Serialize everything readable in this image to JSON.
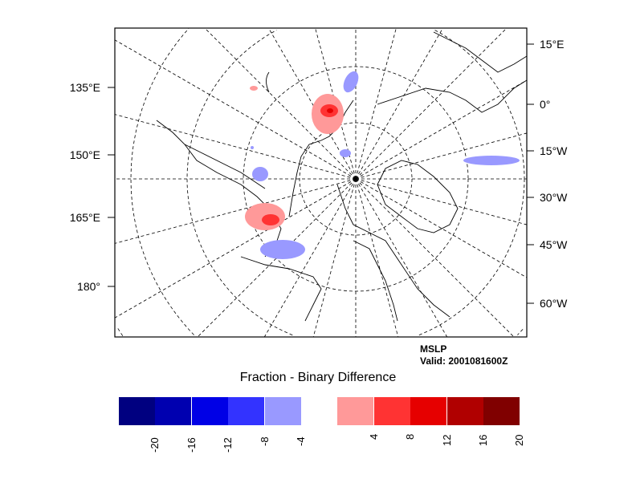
{
  "map": {
    "left_labels": [
      "135°E",
      "150°E",
      "165°E",
      "180°"
    ],
    "right_labels": [
      "15°E",
      "0°",
      "15°W",
      "30°W",
      "45°W",
      "60°W"
    ]
  },
  "info": {
    "variable": "MSLP",
    "valid": "Valid: 2001081600Z"
  },
  "title": "Fraction - Binary Difference",
  "colorbar": {
    "colors": [
      "#000080",
      "#0000b0",
      "#0000e6",
      "#3333ff",
      "#9999ff",
      "#ffffff",
      "#ff9999",
      "#ff3333",
      "#e60000",
      "#b00000",
      "#800000"
    ],
    "labels": [
      "-20",
      "-16",
      "-12",
      "-8",
      "-4",
      "4",
      "8",
      "12",
      "16",
      "20"
    ]
  }
}
